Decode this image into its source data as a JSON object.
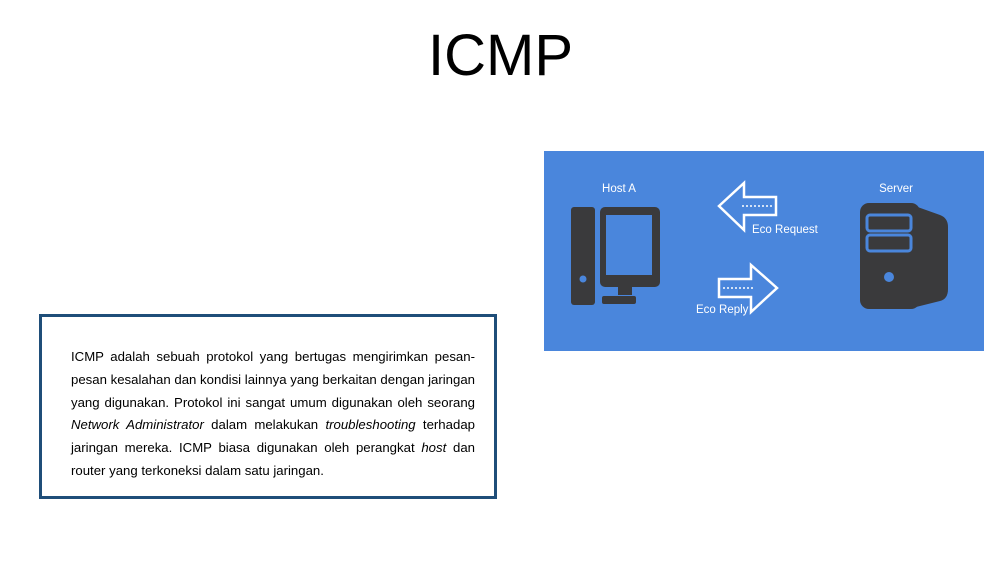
{
  "slide": {
    "title": "ICMP"
  },
  "textbox": {
    "p1": "ICMP adalah sebuah protokol yang bertugas mengirimkan pesan-pesan kesalahan dan kondisi lainnya yang berkaitan dengan jaringan yang digunakan. Protokol ini sangat umum digunakan oleh seorang ",
    "em1": "Network Administrator",
    "p2": " dalam melakukan ",
    "em2": "troubleshooting",
    "p3": " terhadap jaringan mereka. ICMP biasa digunakan oleh perangkat ",
    "em3": "host",
    "p4": " dan router yang terkoneksi dalam satu jaringan."
  },
  "diagram": {
    "background": "#4a86dc",
    "icon_color": "#3a3a3c",
    "host_label": "Host A",
    "server_label": "Server",
    "request_label": "Eco Request",
    "reply_label": "Eco Reply",
    "host_icon": "computer-icon",
    "server_icon": "server-icon"
  }
}
